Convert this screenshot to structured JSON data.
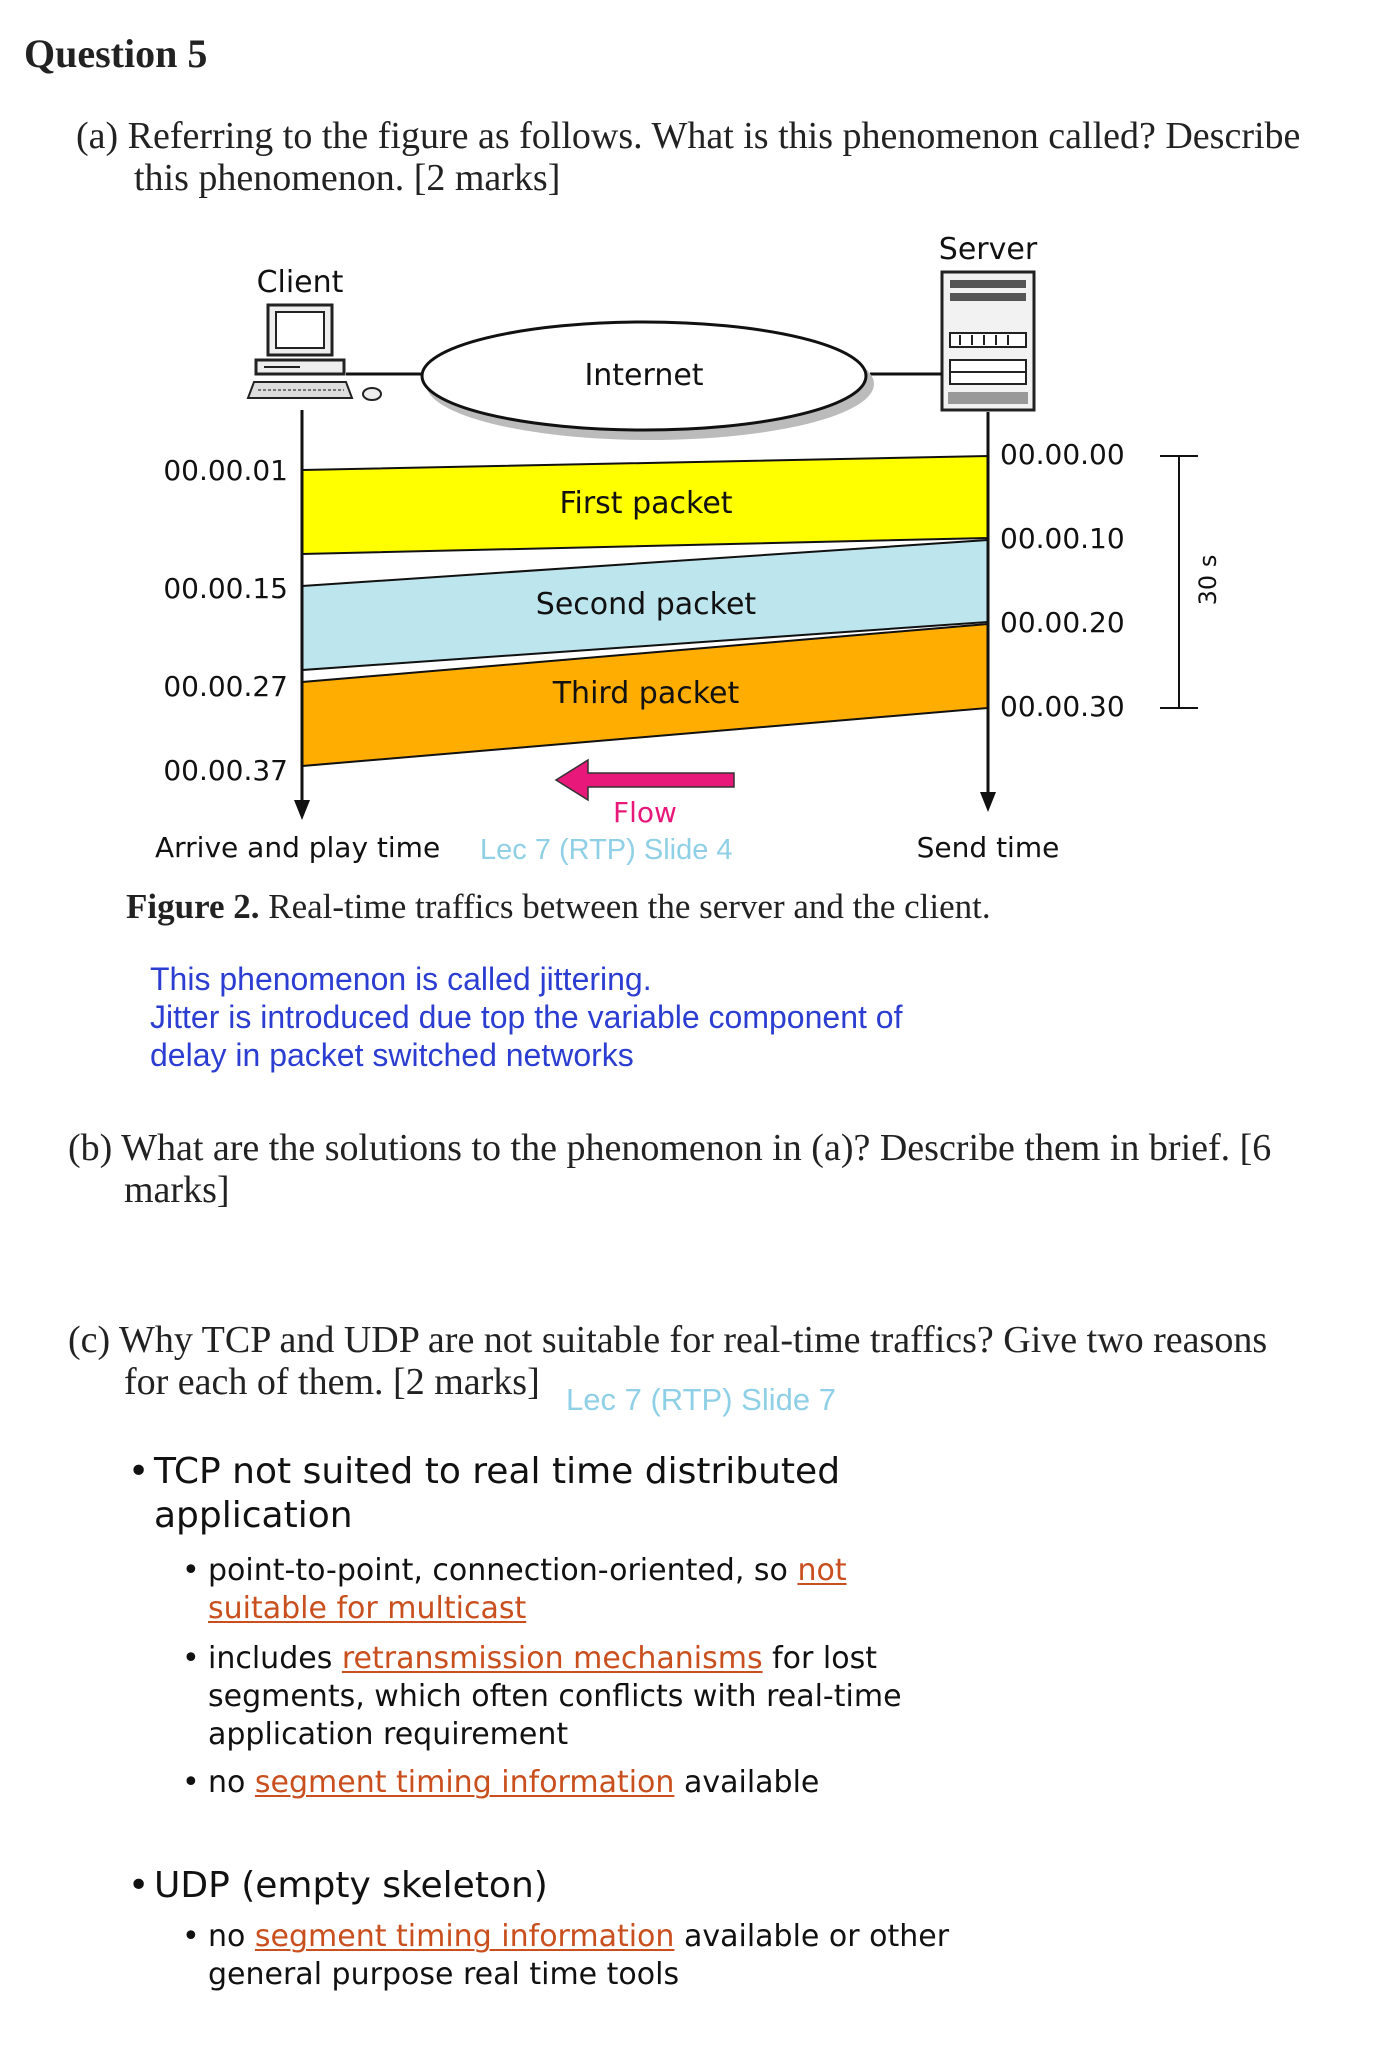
{
  "question": {
    "title": "Question 5"
  },
  "part_a": {
    "line1": "(a) Referring to the figure as follows. What is this phenomenon called? Describe",
    "line2": "this phenomenon. [2 marks]"
  },
  "figure": {
    "server_label": "Server",
    "client_label": "Client",
    "internet_label": "Internet",
    "client_times": [
      "00.00.01",
      "00.00.15",
      "00.00.27",
      "00.00.37"
    ],
    "server_times": [
      "00.00.00",
      "00.00.10",
      "00.00.20",
      "00.00.30"
    ],
    "packets": [
      "First packet",
      "Second packet",
      "Third packet"
    ],
    "packet_colors": [
      "#ffff00",
      "#bde5ee",
      "#ffad00"
    ],
    "duration_label": "30 s",
    "flow_label": "Flow",
    "flow_color": "#e8187a",
    "arrive_label": "Arrive and play time",
    "send_label": "Send time",
    "ref_a": "Lec 7 (RTP) Slide 4",
    "caption_bold": "Figure 2.",
    "caption_text": " Real-time traffics between the server and the client."
  },
  "answer_a": {
    "line1": "This phenomenon is called jittering.",
    "line2": "Jitter is introduced due top the variable component of",
    "line3": "delay in packet switched networks"
  },
  "part_b": {
    "line1": "(b) What are the solutions to the phenomenon in (a)? Describe them in brief. [6",
    "line2": "marks]"
  },
  "part_c": {
    "line1": "(c) Why TCP and UDP are not suitable for real-time traffics? Give two reasons",
    "line2": "for each of them. [2 marks]",
    "ref": "Lec 7 (RTP) Slide 7"
  },
  "tcp": {
    "heading_line1": "TCP not suited to real time distributed",
    "heading_line2": "application",
    "p1_a": "point-to-point, connection-oriented, so ",
    "p1_hl1": "not",
    "p1_hl2": "suitable for multicast",
    "p2_a": "includes ",
    "p2_hl": "retransmission mechanisms",
    "p2_b": " for lost",
    "p2_line2": "segments, which often conflicts with real-time",
    "p2_line3": "application requirement",
    "p3_a": "no ",
    "p3_hl": "segment timing information",
    "p3_b": " available"
  },
  "udp": {
    "heading": "UDP (empty skeleton)",
    "p1_a": "no ",
    "p1_hl": "segment timing information",
    "p1_b": " available or other",
    "p1_line2": "general purpose real time tools"
  }
}
